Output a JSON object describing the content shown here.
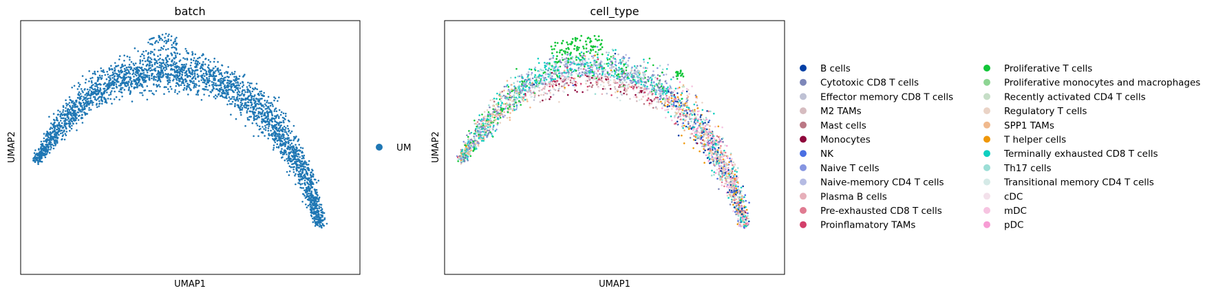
{
  "panels": [
    {
      "title": "batch",
      "xlabel": "UMAP1",
      "ylabel": "UMAP2"
    },
    {
      "title": "cell_type",
      "xlabel": "UMAP1",
      "ylabel": "UMAP2"
    }
  ],
  "chart_data": [
    {
      "type": "scatter",
      "title": "batch",
      "xlabel": "UMAP1",
      "ylabel": "UMAP2",
      "grid": false,
      "ticks": false,
      "legend_position": "right",
      "series": [
        {
          "name": "UM",
          "color": "#1f77b4"
        }
      ]
    },
    {
      "type": "scatter",
      "title": "cell_type",
      "xlabel": "UMAP1",
      "ylabel": "UMAP2",
      "grid": false,
      "ticks": false,
      "legend_position": "right",
      "legend_columns": 2,
      "series": [
        {
          "name": "B cells",
          "color": "#023fa5"
        },
        {
          "name": "Cytotoxic CD8 T cells",
          "color": "#7d87b9"
        },
        {
          "name": "Effector memory CD8 T cells",
          "color": "#bec1d4"
        },
        {
          "name": "M2 TAMs",
          "color": "#d6bcc0"
        },
        {
          "name": "Mast cells",
          "color": "#bb7784"
        },
        {
          "name": "Monocytes",
          "color": "#8e063b"
        },
        {
          "name": "NK",
          "color": "#4a6fe3"
        },
        {
          "name": "Naive T cells",
          "color": "#8595e1"
        },
        {
          "name": "Naive-memory CD4 T cells",
          "color": "#b5bbe3"
        },
        {
          "name": "Plasma B cells",
          "color": "#e6afb9"
        },
        {
          "name": "Pre-exhausted CD8 T cells",
          "color": "#e07b91"
        },
        {
          "name": "Proinflamatory TAMs",
          "color": "#d33f6a"
        },
        {
          "name": "Proliferative T cells",
          "color": "#11c638"
        },
        {
          "name": "Proliferative monocytes and macrophages",
          "color": "#8dd593"
        },
        {
          "name": "Recently activated CD4 T cells",
          "color": "#c6dec7"
        },
        {
          "name": "Regulatory T cells",
          "color": "#ead3c6"
        },
        {
          "name": "SPP1 TAMs",
          "color": "#f0b98d"
        },
        {
          "name": "T helper cells",
          "color": "#ef9708"
        },
        {
          "name": "Terminally exhausted CD8 T cells",
          "color": "#0fcfc0"
        },
        {
          "name": "Th17 cells",
          "color": "#9cded6"
        },
        {
          "name": "Transitional memory CD4 T cells",
          "color": "#d5eae7"
        },
        {
          "name": "cDC",
          "color": "#f3e1eb"
        },
        {
          "name": "mDC",
          "color": "#f6c4e1"
        },
        {
          "name": "pDC",
          "color": "#f79cd4"
        }
      ]
    }
  ]
}
